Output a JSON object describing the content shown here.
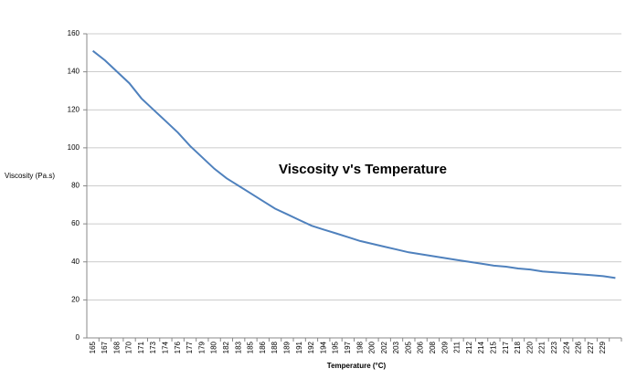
{
  "chart_data": {
    "type": "line",
    "title": "Viscosity v's Temperature",
    "x_label": "Temperature  (°C)",
    "y_label": "Viscosity (Pa.s)",
    "categories": [
      "165",
      "167",
      "168",
      "170",
      "171",
      "173",
      "174",
      "176",
      "177",
      "179",
      "180",
      "182",
      "183",
      "185",
      "186",
      "188",
      "189",
      "191",
      "192",
      "194",
      "195",
      "197",
      "198",
      "200",
      "202",
      "203",
      "205",
      "206",
      "208",
      "209",
      "211",
      "212",
      "214",
      "215",
      "217",
      "218",
      "220",
      "221",
      "223",
      "224",
      "226",
      "227",
      "229",
      null
    ],
    "values": [
      151,
      146,
      140,
      134,
      126,
      120,
      114,
      108,
      101,
      95,
      89,
      84,
      80,
      76,
      72,
      68,
      65,
      62,
      59,
      57,
      55,
      53,
      51,
      49.5,
      48,
      46.5,
      45,
      44,
      43,
      42,
      41,
      40,
      39,
      38,
      37.5,
      36.5,
      36,
      35,
      34.5,
      34,
      33.5,
      33,
      32.5,
      31.5
    ],
    "color": "#4f81bd",
    "ylim": [
      0,
      160
    ],
    "yticks": [
      0,
      20,
      40,
      60,
      80,
      100,
      120,
      140,
      160
    ],
    "grid": true
  }
}
